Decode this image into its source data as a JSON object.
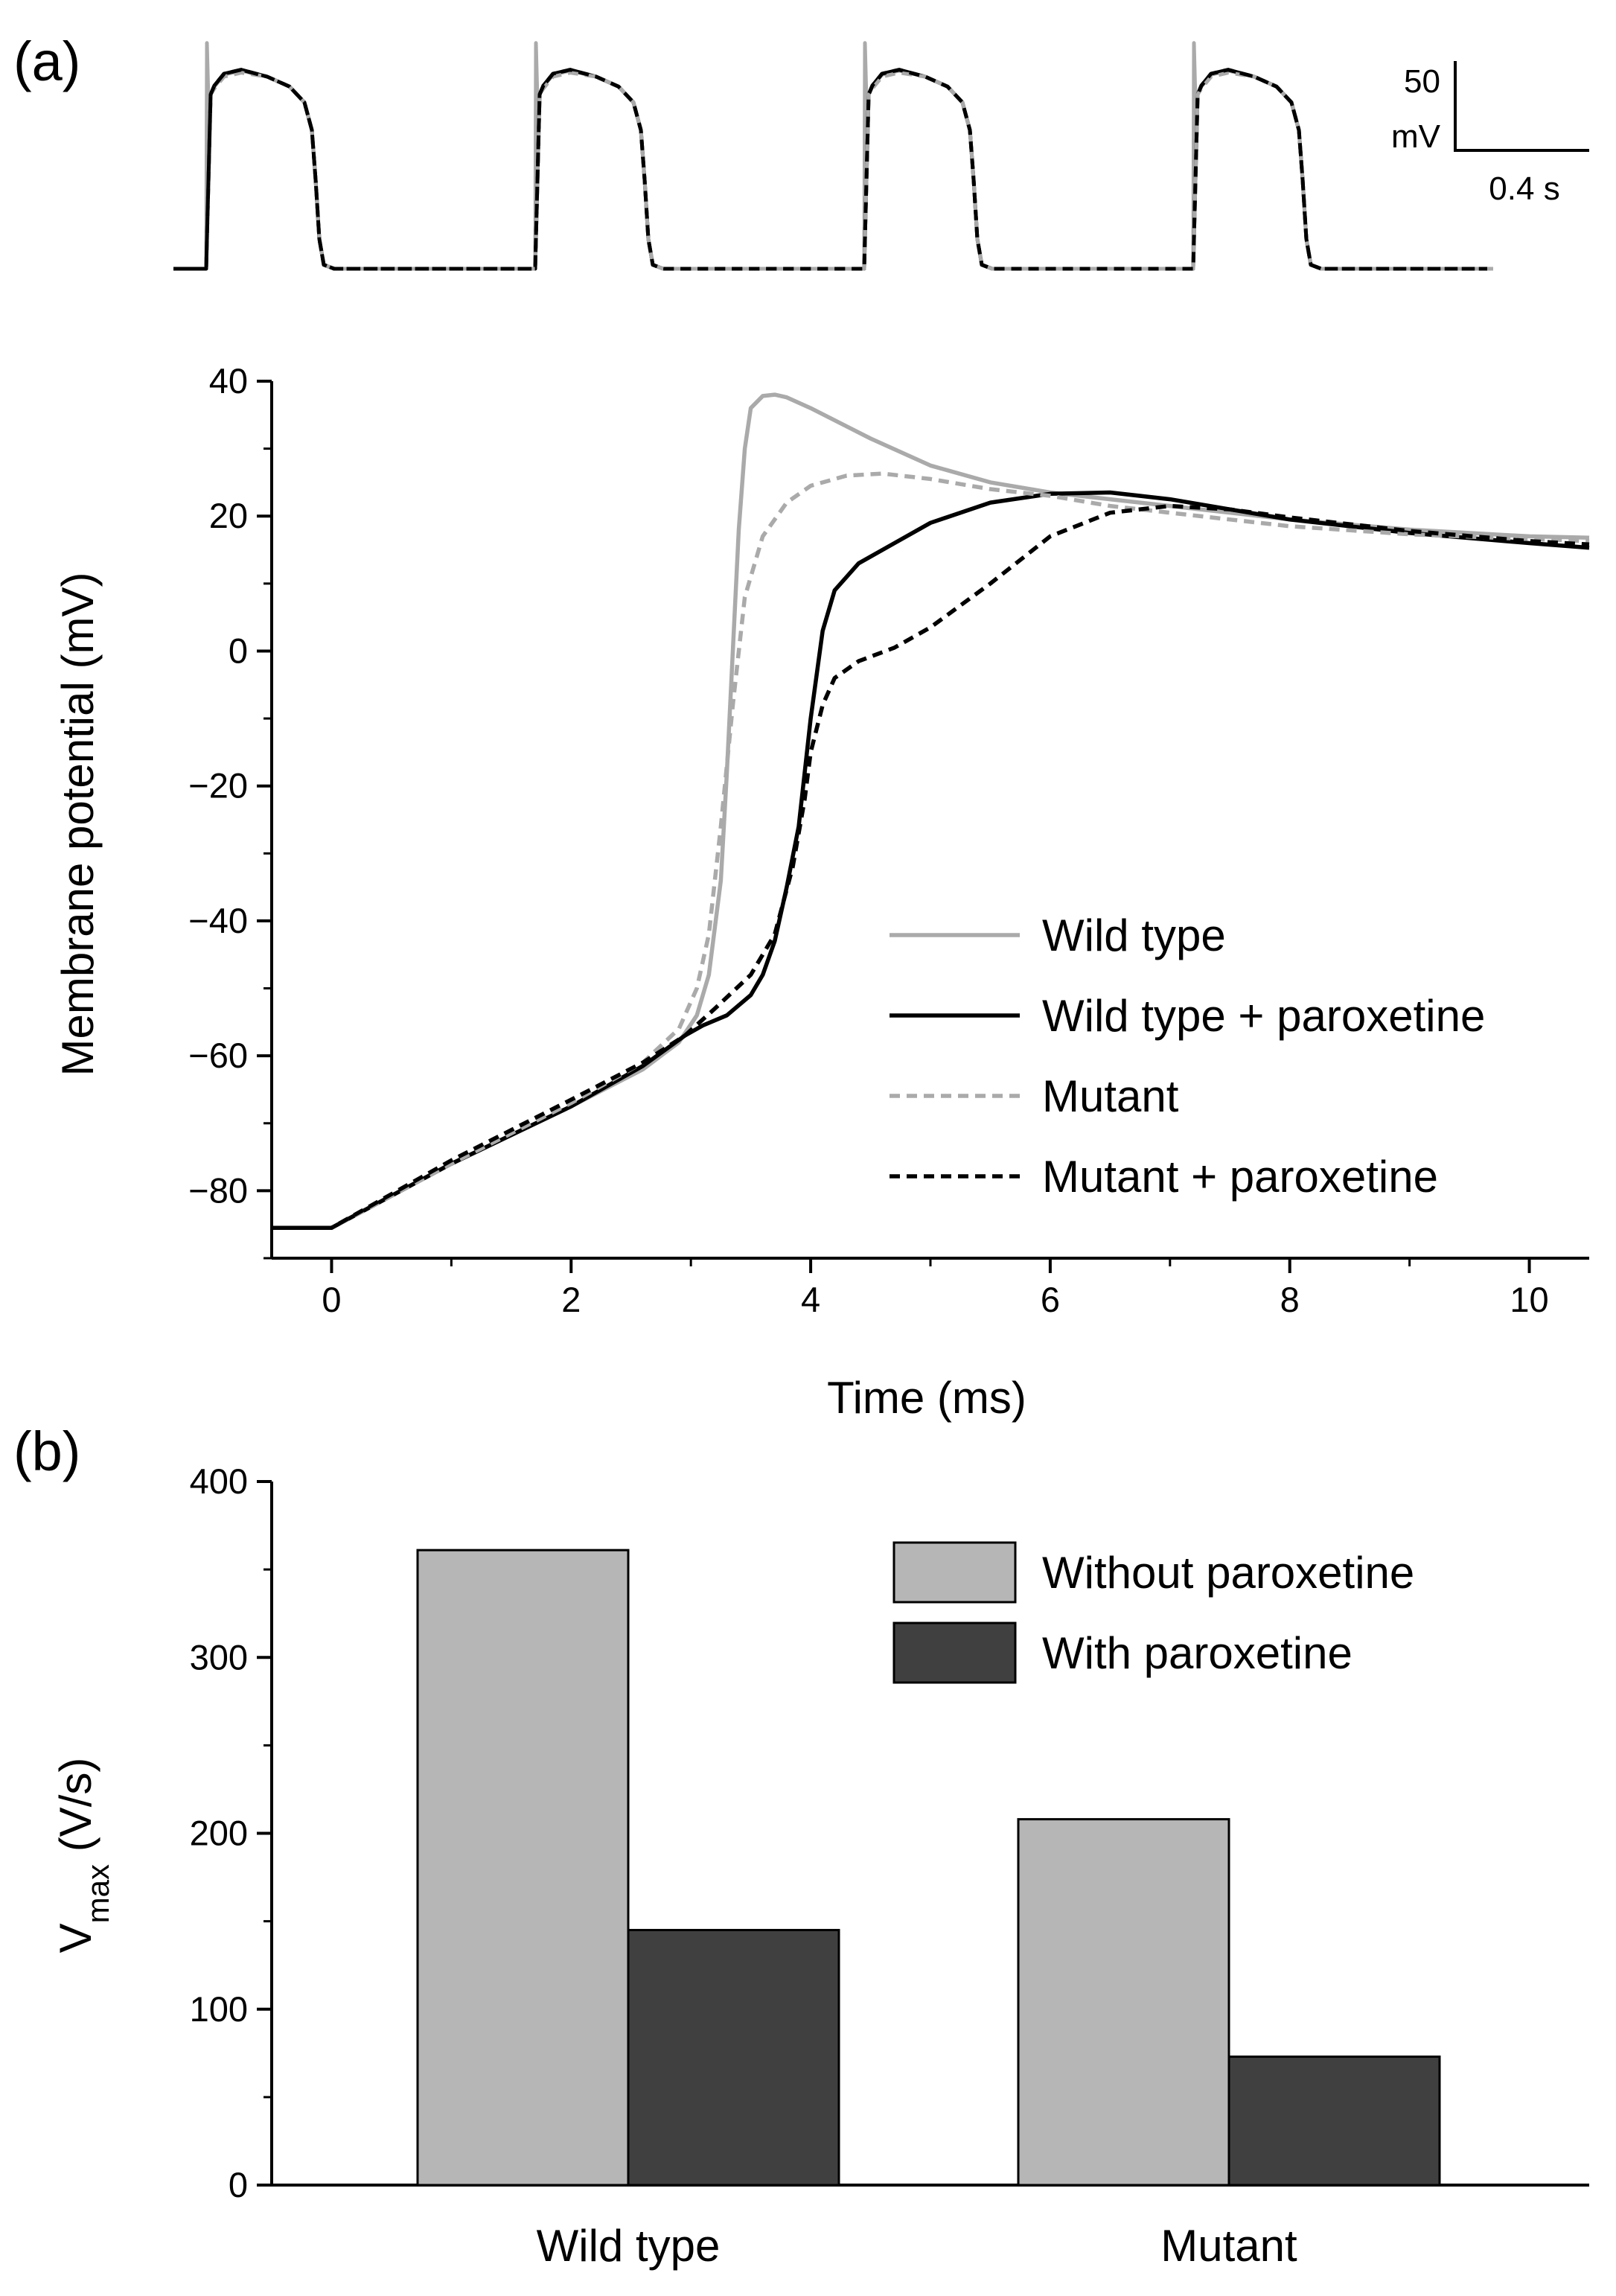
{
  "figure": {
    "panel_a_label": "(a)",
    "panel_b_label": "(b)",
    "scale_bar": {
      "voltage_value": "50",
      "voltage_unit": "mV",
      "time": "0.4 s"
    }
  },
  "colors": {
    "wild_type": "#aaaaaa",
    "wild_type_paroxetine": "#000000",
    "mutant": "#aaaaaa",
    "mutant_paroxetine": "#000000",
    "bar_without": "#b6b6b6",
    "bar_with": "#404040"
  },
  "chart_data": [
    {
      "id": "action-potential-train",
      "type": "line",
      "title": "",
      "xlabel": "",
      "ylabel": "",
      "axes_visible": false,
      "beat_count": 4,
      "series": [
        {
          "name": "Wild type",
          "style": "solid",
          "color": "#aaaaaa"
        },
        {
          "name": "Wild type + paroxetine",
          "style": "solid",
          "color": "#000000"
        },
        {
          "name": "Mutant",
          "style": "dashed",
          "color": "#aaaaaa"
        },
        {
          "name": "Mutant + paroxetine",
          "style": "dashed",
          "color": "#000000"
        }
      ]
    },
    {
      "id": "upstroke",
      "type": "line",
      "title": "",
      "xlabel": "Time (ms)",
      "ylabel": "Membrane potential (mV)",
      "xlim": [
        -0.5,
        10.5
      ],
      "ylim": [
        -90,
        40
      ],
      "xticks": [
        0,
        2,
        4,
        6,
        8,
        10
      ],
      "yticks": [
        -80,
        -60,
        -40,
        -20,
        0,
        20,
        40
      ],
      "xtick_labels": [
        "0",
        "2",
        "4",
        "6",
        "8",
        "10"
      ],
      "ytick_labels": [
        "−80",
        "−60",
        "−40",
        "−20",
        "0",
        "20",
        "40"
      ],
      "legend_position": "lower-right",
      "grid": false,
      "series": [
        {
          "name": "Wild type",
          "style": "solid",
          "color": "#aaaaaa",
          "x": [
            -0.5,
            0,
            1,
            2,
            2.6,
            2.9,
            3.05,
            3.15,
            3.25,
            3.3,
            3.35,
            3.4,
            3.45,
            3.5,
            3.6,
            3.7,
            3.8,
            4,
            4.5,
            5,
            5.5,
            6,
            6.5,
            7,
            7.5,
            8,
            9,
            10,
            10.5
          ],
          "y": [
            -85.5,
            -85.5,
            -76,
            -67.5,
            -62,
            -58,
            -54,
            -48,
            -34,
            -18,
            0,
            18,
            30,
            36,
            37.8,
            38,
            37.6,
            36,
            31.5,
            27.5,
            25,
            23.5,
            22.5,
            21.5,
            20.5,
            19.5,
            18,
            17,
            16.8
          ]
        },
        {
          "name": "Wild type + paroxetine",
          "style": "solid",
          "color": "#000000",
          "x": [
            -0.5,
            0,
            1,
            2,
            2.6,
            2.95,
            3.1,
            3.3,
            3.5,
            3.6,
            3.7,
            3.8,
            3.9,
            4,
            4.1,
            4.2,
            4.4,
            4.7,
            5,
            5.5,
            6,
            6.5,
            7,
            7.5,
            8,
            9,
            10,
            10.5
          ],
          "y": [
            -85.5,
            -85.5,
            -76,
            -67.5,
            -61.5,
            -57,
            -55.5,
            -54,
            -51,
            -48,
            -43,
            -35,
            -26,
            -10,
            3,
            9,
            13,
            16,
            19,
            22,
            23.3,
            23.5,
            22.5,
            21,
            19.5,
            17.5,
            16,
            15.3
          ]
        },
        {
          "name": "Mutant",
          "style": "dashed",
          "color": "#aaaaaa",
          "x": [
            -0.5,
            0,
            1,
            2,
            2.6,
            2.9,
            3.05,
            3.15,
            3.25,
            3.35,
            3.45,
            3.6,
            3.8,
            4,
            4.3,
            4.6,
            5,
            5.5,
            6,
            6.5,
            7,
            7.5,
            8,
            9,
            10,
            10.5
          ],
          "y": [
            -85.5,
            -85.5,
            -76,
            -67,
            -61,
            -56,
            -50,
            -42,
            -26,
            -8,
            8,
            17,
            22,
            24.5,
            26,
            26.3,
            25.5,
            24,
            23,
            21.5,
            20.5,
            19.5,
            18.5,
            17.3,
            16.6,
            16.3
          ]
        },
        {
          "name": "Mutant + paroxetine",
          "style": "dashed",
          "color": "#000000",
          "x": [
            -0.5,
            0,
            1,
            2,
            2.6,
            2.95,
            3.2,
            3.5,
            3.7,
            3.85,
            3.95,
            4,
            4.1,
            4.2,
            4.4,
            4.7,
            5,
            5.5,
            6,
            6.5,
            7,
            7.5,
            8,
            9,
            10,
            10.5
          ],
          "y": [
            -85.5,
            -85.5,
            -75.5,
            -66.5,
            -61,
            -57,
            -53,
            -48,
            -42,
            -32,
            -22,
            -15,
            -8,
            -4,
            -1.5,
            0.5,
            3.5,
            10,
            17,
            20.5,
            21.5,
            21,
            19.8,
            17.8,
            16.3,
            15.8
          ]
        }
      ]
    },
    {
      "id": "vmax",
      "type": "bar",
      "title": "",
      "xlabel": "",
      "ylabel": "V",
      "ylabel_subscript": "max",
      "ylabel_suffix": " (V/s)",
      "ylim": [
        0,
        400
      ],
      "yticks": [
        0,
        100,
        200,
        300,
        400
      ],
      "ytick_labels": [
        "0",
        "100",
        "200",
        "300",
        "400"
      ],
      "categories": [
        "Wild type",
        "Mutant"
      ],
      "legend_position": "top-right",
      "series": [
        {
          "name": "Without paroxetine",
          "color": "#b6b6b6",
          "values": [
            361,
            208
          ]
        },
        {
          "name": "With paroxetine",
          "color": "#404040",
          "values": [
            145,
            73
          ]
        }
      ]
    }
  ]
}
